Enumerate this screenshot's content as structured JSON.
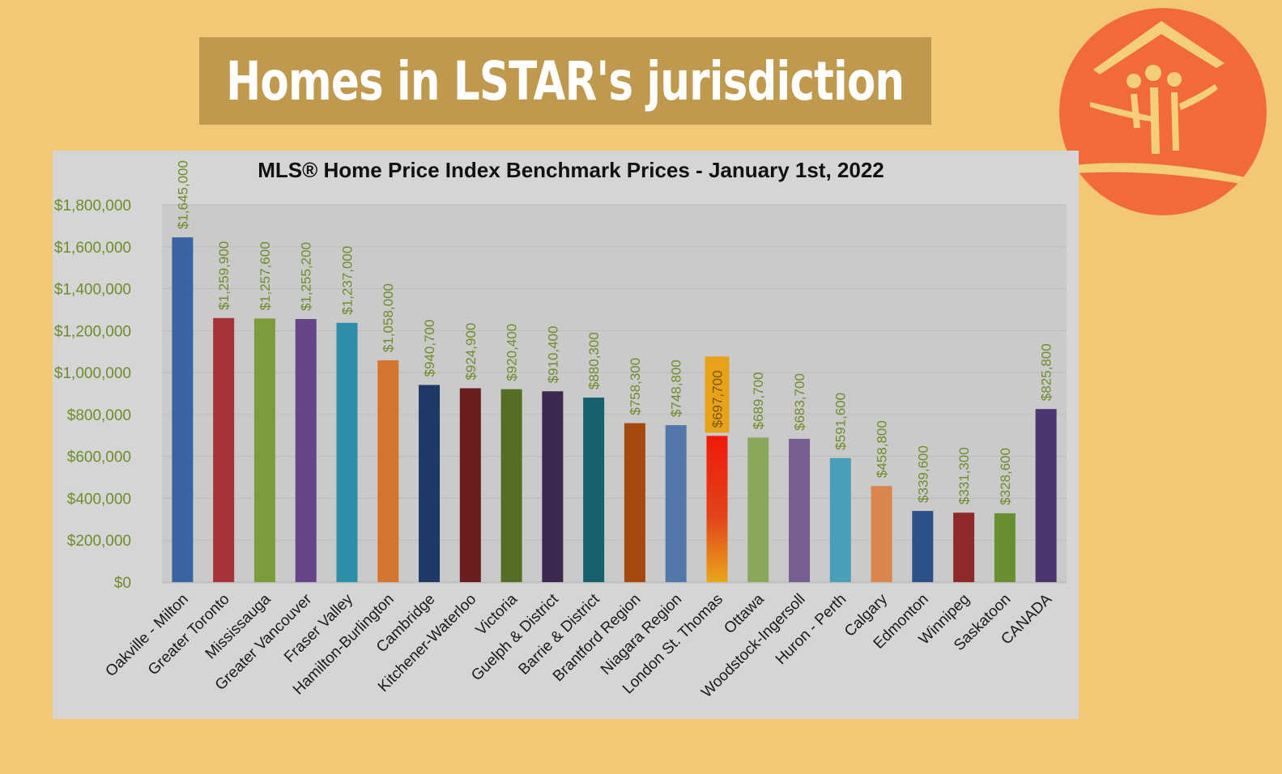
{
  "headline": "Homes in LSTAR's jurisdiction",
  "logo_icon": "house-family-logo-icon",
  "colors": {
    "page_background": "#f2c877",
    "headline_background": "#bf9a4e",
    "logo_background": "#f26a3c",
    "chart_background": "#d5d5d5",
    "value_label": "#6f8c2a",
    "highlight_box": "#e8a21a"
  },
  "chart_data": {
    "type": "bar",
    "title": "MLS® Home Price Index Benchmark Prices - January 1st, 2022",
    "xlabel": "",
    "ylabel": "",
    "ylim": [
      0,
      1800000
    ],
    "yticks": [
      0,
      200000,
      400000,
      600000,
      800000,
      1000000,
      1200000,
      1400000,
      1600000,
      1800000
    ],
    "ytick_labels": [
      "$0",
      "$200,000",
      "$400,000",
      "$600,000",
      "$800,000",
      "$1,000,000",
      "$1,200,000",
      "$1,400,000",
      "$1,600,000",
      "$1,800,000"
    ],
    "grid": true,
    "legend": "none",
    "categories": [
      "Oakville - Milton",
      "Greater Toronto",
      "Mississauga",
      "Greater Vancouver",
      "Fraser Valley",
      "Hamilton-Burlington",
      "Cambridge",
      "Kitchener-Waterloo",
      "Victoria",
      "Guelph & District",
      "Barrie & District",
      "Brantford Region",
      "Niagara Region",
      "London St. Thomas",
      "Ottawa",
      "Woodstock-Ingersoll",
      "Huron - Perth",
      "Calgary",
      "Edmonton",
      "Winnipeg",
      "Saskatoon",
      "CANADA"
    ],
    "values": [
      1645000,
      1259900,
      1257600,
      1255200,
      1237000,
      1058000,
      940700,
      924900,
      920400,
      910400,
      880300,
      758300,
      748800,
      697700,
      689700,
      683700,
      591600,
      458800,
      339600,
      331300,
      328600,
      825800
    ],
    "value_labels": [
      "$1,645,000",
      "$1,259,900",
      "$1,257,600",
      "$1,255,200",
      "$1,237,000",
      "$1,058,000",
      "$940,700",
      "$924,900",
      "$920,400",
      "$910,400",
      "$880,300",
      "$758,300",
      "$748,800",
      "$697,700",
      "$689,700",
      "$683,700",
      "$591,600",
      "$458,800",
      "$339,600",
      "$331,300",
      "$328,600",
      "$825,800"
    ],
    "bar_colors": [
      "#3a63a3",
      "#a8333a",
      "#7b9c3b",
      "#654488",
      "#2e8ea9",
      "#d3742f",
      "#1e3a66",
      "#6b1c1e",
      "#556e25",
      "#3d2950",
      "#166070",
      "#a5490f",
      "#5277aa",
      "#ee1a0a",
      "#8aa85c",
      "#775f94",
      "#4a9fb8",
      "#d9864e",
      "#2b5288",
      "#8f2a2a",
      "#6a8f32",
      "#4d3570"
    ],
    "highlight_category": "London St. Thomas"
  }
}
